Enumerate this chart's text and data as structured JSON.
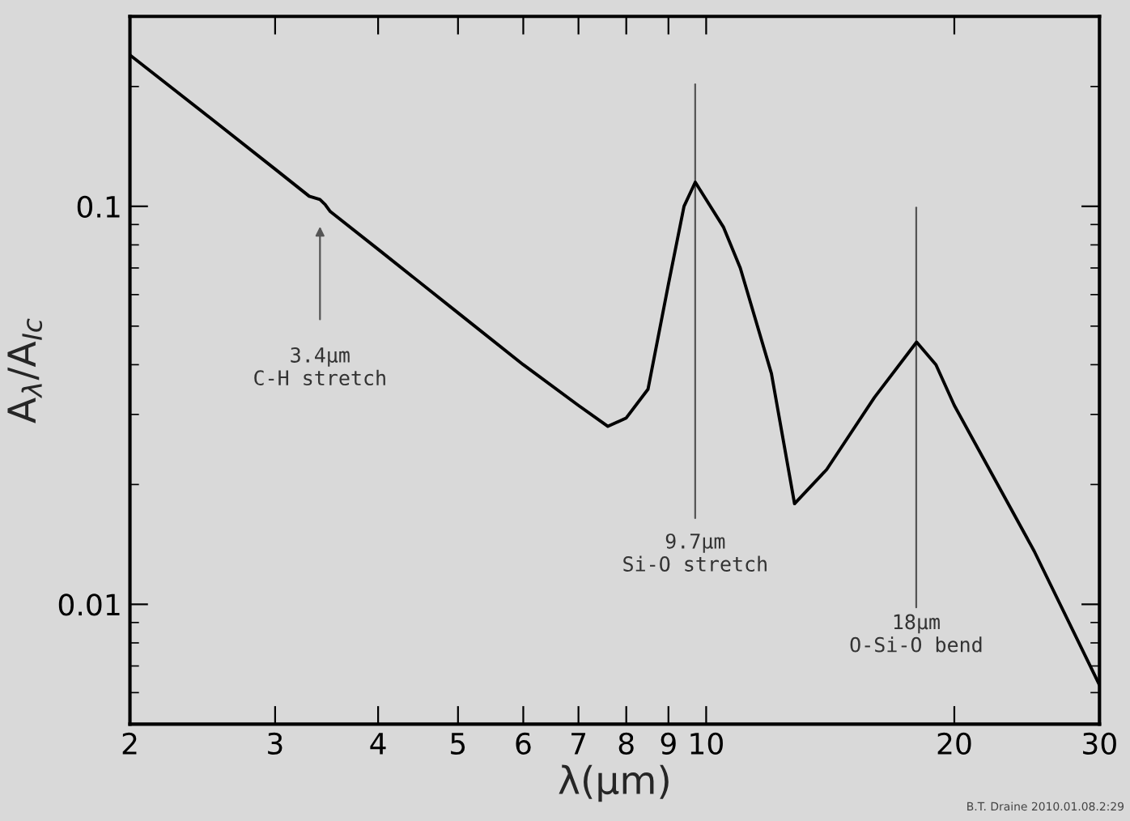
{
  "chart_data": {
    "type": "line",
    "xlabel": "λ(μm)",
    "ylabel": "A$_{λ}$/A$_{Ic}$",
    "log": "xy",
    "xlim": [
      2,
      30
    ],
    "ylim": [
      0.005,
      0.3
    ],
    "xticks": [
      2,
      3,
      4,
      5,
      6,
      7,
      8,
      9,
      10,
      20,
      30
    ],
    "yticks": [
      0.01,
      0.1
    ],
    "series": [
      {
        "color": "#000000",
        "x": [
          2,
          2.5,
          3,
          3.3,
          3.4,
          3.45,
          3.5,
          4,
          5,
          6,
          7,
          7.6,
          8,
          8.5,
          9,
          9.4,
          9.7,
          10.5,
          11,
          12,
          12.8,
          14,
          16,
          18,
          19,
          20,
          25,
          30
        ],
        "values": [
          0.24,
          0.167,
          0.124,
          0.106,
          0.104,
          0.101,
          0.097,
          0.078,
          0.054,
          0.04,
          0.0316,
          0.028,
          0.0294,
          0.0347,
          0.0638,
          0.1,
          0.115,
          0.0885,
          0.07,
          0.038,
          0.0179,
          0.0218,
          0.0331,
          0.0456,
          0.04,
          0.0316,
          0.0136,
          0.00627
        ]
      }
    ],
    "annotations": [
      "3.4μm\nC-H stretch",
      "9.7μm\nSi-O stretch",
      "18μm\nO-Si-O bend",
      "B.T. Draine 2010.01.08.2:29"
    ],
    "grid": false,
    "marker": "none",
    "line_style": "solid"
  }
}
